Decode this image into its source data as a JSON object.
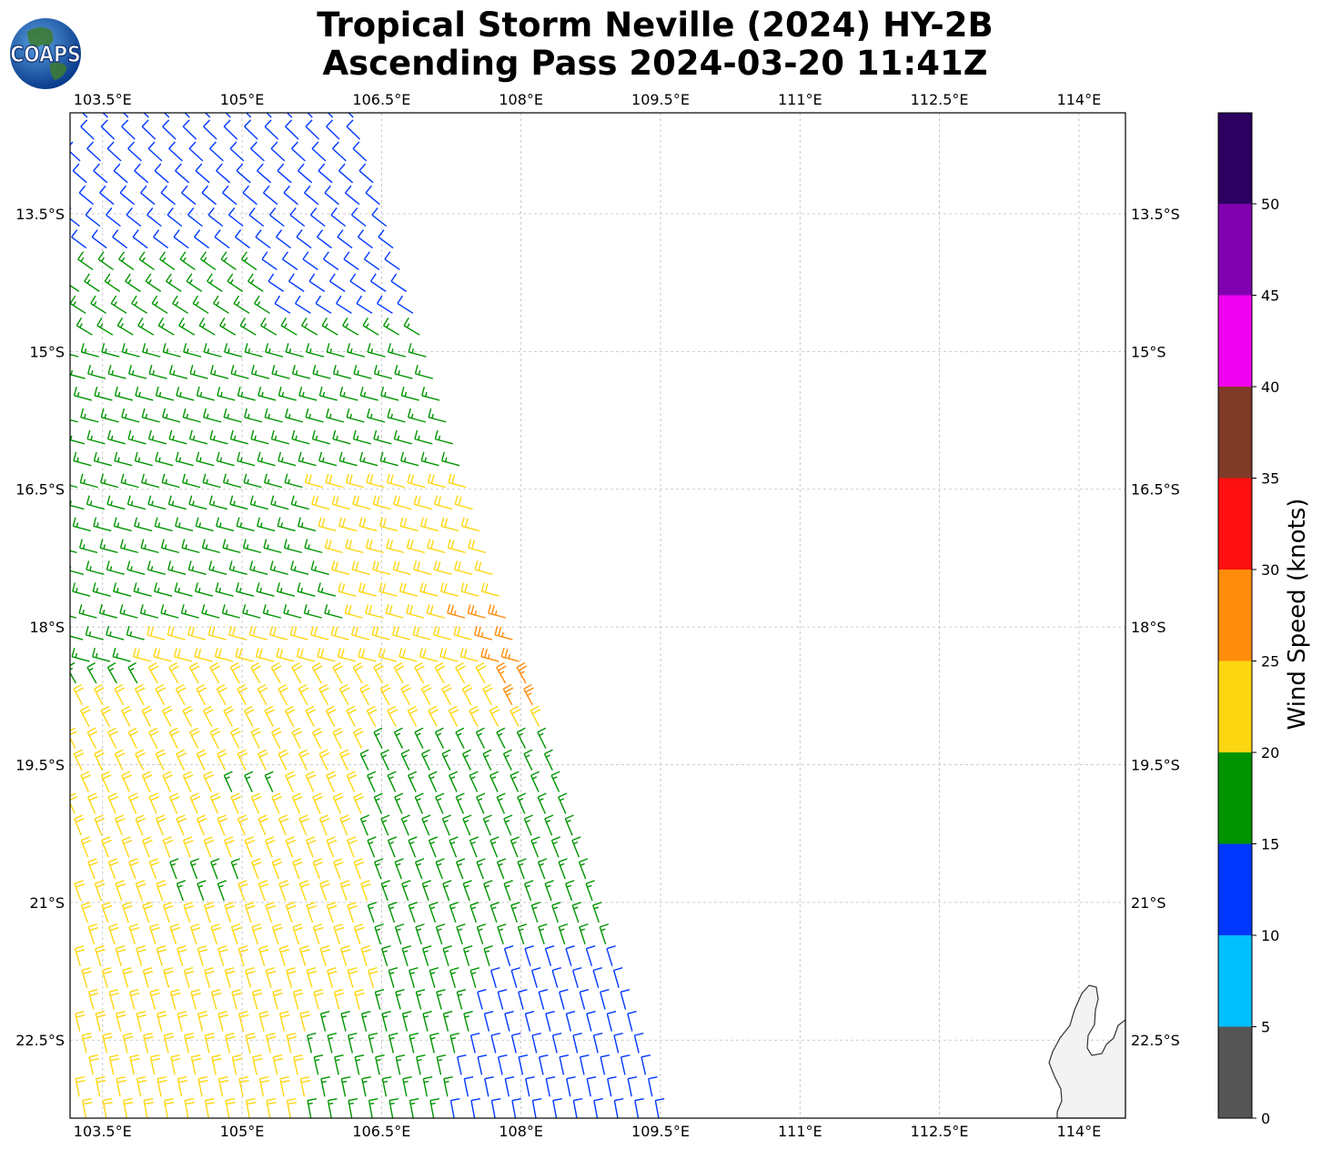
{
  "figure": {
    "title_line1": "Tropical Storm Neville (2024) HY-2B",
    "title_line2": "Ascending Pass 2024-03-20 11:41Z",
    "logo_text": "COAPS",
    "colorbar_label": "Wind Speed (knots)"
  },
  "map": {
    "lon_range": [
      103.15,
      114.5
    ],
    "lat_range": [
      -23.35,
      -12.4
    ],
    "lon_ticks": [
      "103.5°E",
      "105°E",
      "106.5°E",
      "108°E",
      "109.5°E",
      "111°E",
      "112.5°E",
      "114°E"
    ],
    "lat_ticks": [
      "13.5°S",
      "15°S",
      "16.5°S",
      "18°S",
      "19.5°S",
      "21°S",
      "22.5°S"
    ],
    "gridlines": true,
    "land": "Western Australia coastline near North West Cape (114°E, 22°S)"
  },
  "colorbar": {
    "tick_labels": [
      "0",
      "5",
      "10",
      "15",
      "20",
      "25",
      "30",
      "35",
      "40",
      "45",
      "50"
    ],
    "bins": [
      {
        "range": "0-5",
        "color": "#555555"
      },
      {
        "range": "5-10",
        "color": "#00bfff"
      },
      {
        "range": "10-15",
        "color": "#0038ff"
      },
      {
        "range": "15-20",
        "color": "#009400"
      },
      {
        "range": "20-25",
        "color": "#fdd612"
      },
      {
        "range": "25-30",
        "color": "#ff8c0a"
      },
      {
        "range": "30-35",
        "color": "#ff1010"
      },
      {
        "range": "35-40",
        "color": "#7f3b28"
      },
      {
        "range": "40-45",
        "color": "#f000f0"
      },
      {
        "range": "45-50",
        "color": "#8000b0"
      },
      {
        "range": "50+",
        "color": "#2b0060"
      }
    ]
  },
  "chart_data": {
    "type": "wind_barbs",
    "swath_edges_lon": {
      "lat_-12.4": [
        103.15,
        106.2
      ],
      "lat_-23.35": [
        103.15,
        109.5
      ]
    },
    "regions": [
      {
        "name": "northern swath",
        "lat": [
          -12.4,
          -14.8
        ],
        "speed_kt": "10-15",
        "direction": "westerly/southwesterly"
      },
      {
        "name": "central band",
        "lat": [
          -14.5,
          -18.0
        ],
        "speed_kt": "15-20",
        "direction": "southwesterly"
      },
      {
        "name": "core east",
        "lat": [
          -16.3,
          -19.3
        ],
        "lon": [
          105.3,
          107.7
        ],
        "speed_kt": "20-25"
      },
      {
        "name": "maximum winds",
        "lat": [
          -17.9,
          -18.8
        ],
        "lon": [
          107.6,
          108.1
        ],
        "speed_kt": "25-30"
      },
      {
        "name": "southwest",
        "lat": [
          -18.0,
          -23.35
        ],
        "lon": [
          103.15,
          106.3
        ],
        "speed_kt": "20-25",
        "direction": "southerly"
      },
      {
        "name": "southeast",
        "lat": [
          -19.3,
          -23.35
        ],
        "lon": [
          106.3,
          109.0
        ],
        "speed_kt": "15-20"
      },
      {
        "name": "southeast edge",
        "lat": [
          -21.6,
          -23.35
        ],
        "lon": [
          107.9,
          109.5
        ],
        "speed_kt": "10-15"
      }
    ]
  }
}
